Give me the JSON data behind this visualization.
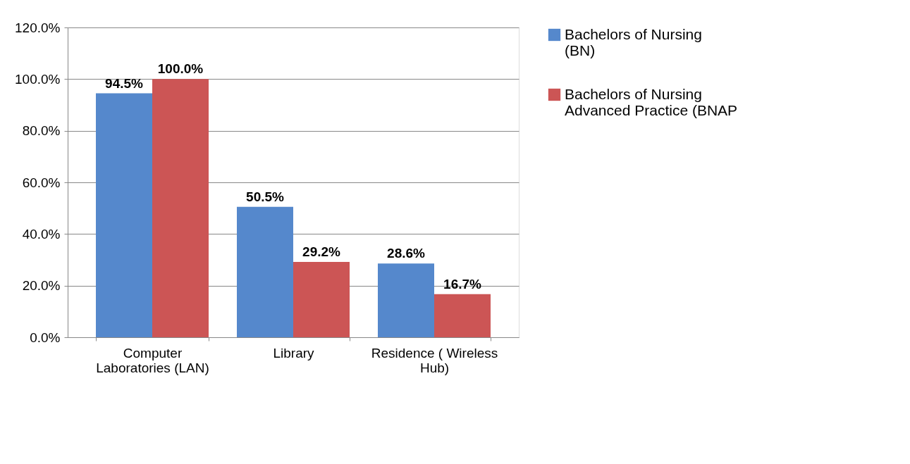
{
  "chart_data": {
    "type": "bar",
    "categories": [
      "Computer Laboratories (LAN)",
      "Library",
      "Residence ( Wireless Hub)"
    ],
    "series": [
      {
        "name": "Bachelors of Nursing (BN)",
        "color": "#5588cc",
        "values": [
          94.5,
          50.5,
          28.6
        ],
        "value_labels": [
          "94.5%",
          "50.5%",
          "28.6%"
        ]
      },
      {
        "name": "Bachelors of Nursing Advanced Practice (BNAP",
        "color": "#cc5555",
        "values": [
          100.0,
          29.2,
          16.7
        ],
        "value_labels": [
          "100.0%",
          "29.2%",
          "16.7%"
        ]
      }
    ],
    "ylim": [
      0,
      120
    ],
    "yticks": [
      {
        "value": 0,
        "label": "0.0%"
      },
      {
        "value": 20,
        "label": "20.0%"
      },
      {
        "value": 40,
        "label": "40.0%"
      },
      {
        "value": 60,
        "label": "60.0%"
      },
      {
        "value": 80,
        "label": "80.0%"
      },
      {
        "value": 100,
        "label": "100.0%"
      },
      {
        "value": 120,
        "label": "120.0%"
      }
    ],
    "grid": "y",
    "legend": "right"
  }
}
